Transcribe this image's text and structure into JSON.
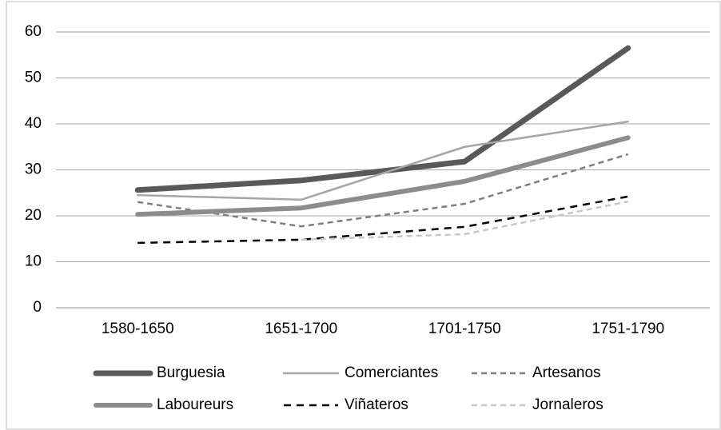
{
  "chart_data": {
    "type": "line",
    "categories": [
      "1580-1650",
      "1651-1700",
      "1701-1750",
      "1751-1790"
    ],
    "series": [
      {
        "name": "Burguesia",
        "color": "#595959",
        "values": [
          25.6,
          27.7,
          31.8,
          56.5
        ]
      },
      {
        "name": "Comerciantes",
        "color": "#a6a6a6",
        "values": [
          24.5,
          23.5,
          35,
          40.5
        ]
      },
      {
        "name": "Artesanos",
        "color": "#7f7f7f",
        "values": [
          23,
          17.7,
          22.6,
          33.4
        ]
      },
      {
        "name": "Laboureurs",
        "color": "#8c8c8c",
        "values": [
          20.3,
          21.7,
          27.5,
          37
        ]
      },
      {
        "name": "Viñateros",
        "color": "#000000",
        "values": [
          14.1,
          14.8,
          17.6,
          24.2
        ]
      },
      {
        "name": "Jornaleros",
        "color": "#c8c8c8",
        "values": [
          null,
          14.8,
          16,
          23.1
        ]
      }
    ],
    "ylim": [
      0,
      60
    ],
    "yticks": [
      0,
      10,
      20,
      30,
      40,
      50,
      60
    ],
    "grid": true,
    "legend": "bottom"
  }
}
